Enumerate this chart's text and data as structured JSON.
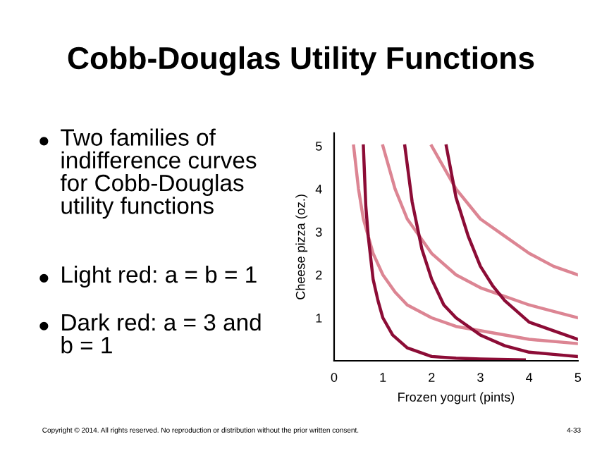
{
  "chart_data": {
    "type": "line",
    "title": "Cobb-Douglas Utility Functions",
    "xlabel": "Frozen yogurt (pints)",
    "ylabel": "Cheese pizza (oz.)",
    "xlim": [
      0,
      5
    ],
    "ylim": [
      0,
      5.3
    ],
    "xticks": [
      0,
      1,
      2,
      3,
      4,
      5
    ],
    "yticks": [
      1,
      2,
      3,
      4,
      5
    ],
    "grid": false,
    "legend": false,
    "marker": "none",
    "line_style": "solid",
    "series": [
      {
        "color": "#dc8593",
        "x": [
          0.4,
          0.5,
          0.6,
          0.8,
          1,
          1.25,
          1.5,
          2,
          2.5,
          3,
          4,
          5
        ],
        "values": [
          5,
          4,
          3.3,
          2.5,
          2,
          1.6,
          1.3,
          1,
          0.8,
          0.7,
          0.5,
          0.4
        ]
      },
      {
        "color": "#dc8593",
        "x": [
          1,
          1.25,
          1.5,
          2,
          2.5,
          3,
          4,
          5
        ],
        "values": [
          5,
          4,
          3.3,
          2.5,
          2,
          1.7,
          1.3,
          1
        ]
      },
      {
        "color": "#dc8593",
        "x": [
          2,
          2.5,
          3,
          3.5,
          4,
          4.5,
          5
        ],
        "values": [
          5,
          4,
          3.3,
          2.9,
          2.5,
          2.2,
          2
        ]
      },
      {
        "color": "#8c0c36",
        "x": [
          0.6,
          0.65,
          0.7,
          0.8,
          0.9,
          1,
          1.2,
          1.5,
          2,
          2.5,
          3,
          3.9
        ],
        "values": [
          5,
          3.6,
          2.9,
          1.9,
          1.4,
          1,
          0.6,
          0.3,
          0.1,
          0.06,
          0.04,
          0.02
        ]
      },
      {
        "color": "#8c0c36",
        "x": [
          1.45,
          1.6,
          1.8,
          2,
          2.25,
          2.5,
          3,
          3.5,
          4,
          4.5,
          5
        ],
        "values": [
          5,
          3.7,
          2.6,
          1.9,
          1.3,
          1,
          0.6,
          0.35,
          0.2,
          0.15,
          0.1
        ]
      },
      {
        "color": "#8c0c36",
        "x": [
          2.3,
          2.5,
          2.75,
          3,
          3.25,
          3.5,
          4,
          4.5,
          5
        ],
        "values": [
          5,
          3.8,
          2.9,
          2.2,
          1.75,
          1.4,
          0.9,
          0.7,
          0.5
        ]
      }
    ],
    "annotations": [
      "Two families of\nindifference curves\nfor Cobb-Douglas\nutility functions",
      "Light red: a = b = 1",
      "Dark red: a = 3 and\nb = 1",
      "Copyright © 2014. All rights reserved. No reproduction or distribution without the prior written consent.",
      "4-33"
    ]
  }
}
